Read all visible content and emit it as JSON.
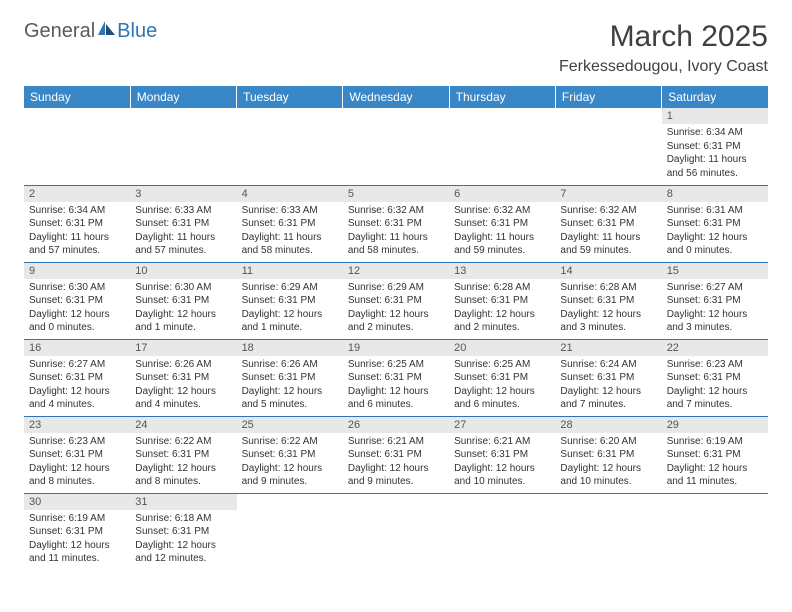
{
  "logo": {
    "text1": "General",
    "text2": "Blue"
  },
  "title": "March 2025",
  "location": "Ferkessedougou, Ivory Coast",
  "daynames": [
    "Sunday",
    "Monday",
    "Tuesday",
    "Wednesday",
    "Thursday",
    "Friday",
    "Saturday"
  ],
  "colors": {
    "header_bg": "#3a87c8",
    "header_text": "#ffffff",
    "border": "#2e75b6",
    "daynum_bg": "#e8e8e8",
    "logo_gray": "#5a5a5a",
    "logo_blue": "#2e75b6"
  },
  "weeks": [
    [
      null,
      null,
      null,
      null,
      null,
      null,
      {
        "n": "1",
        "sr": "Sunrise: 6:34 AM",
        "ss": "Sunset: 6:31 PM",
        "dl": "Daylight: 11 hours and 56 minutes."
      }
    ],
    [
      {
        "n": "2",
        "sr": "Sunrise: 6:34 AM",
        "ss": "Sunset: 6:31 PM",
        "dl": "Daylight: 11 hours and 57 minutes."
      },
      {
        "n": "3",
        "sr": "Sunrise: 6:33 AM",
        "ss": "Sunset: 6:31 PM",
        "dl": "Daylight: 11 hours and 57 minutes."
      },
      {
        "n": "4",
        "sr": "Sunrise: 6:33 AM",
        "ss": "Sunset: 6:31 PM",
        "dl": "Daylight: 11 hours and 58 minutes."
      },
      {
        "n": "5",
        "sr": "Sunrise: 6:32 AM",
        "ss": "Sunset: 6:31 PM",
        "dl": "Daylight: 11 hours and 58 minutes."
      },
      {
        "n": "6",
        "sr": "Sunrise: 6:32 AM",
        "ss": "Sunset: 6:31 PM",
        "dl": "Daylight: 11 hours and 59 minutes."
      },
      {
        "n": "7",
        "sr": "Sunrise: 6:32 AM",
        "ss": "Sunset: 6:31 PM",
        "dl": "Daylight: 11 hours and 59 minutes."
      },
      {
        "n": "8",
        "sr": "Sunrise: 6:31 AM",
        "ss": "Sunset: 6:31 PM",
        "dl": "Daylight: 12 hours and 0 minutes."
      }
    ],
    [
      {
        "n": "9",
        "sr": "Sunrise: 6:30 AM",
        "ss": "Sunset: 6:31 PM",
        "dl": "Daylight: 12 hours and 0 minutes."
      },
      {
        "n": "10",
        "sr": "Sunrise: 6:30 AM",
        "ss": "Sunset: 6:31 PM",
        "dl": "Daylight: 12 hours and 1 minute."
      },
      {
        "n": "11",
        "sr": "Sunrise: 6:29 AM",
        "ss": "Sunset: 6:31 PM",
        "dl": "Daylight: 12 hours and 1 minute."
      },
      {
        "n": "12",
        "sr": "Sunrise: 6:29 AM",
        "ss": "Sunset: 6:31 PM",
        "dl": "Daylight: 12 hours and 2 minutes."
      },
      {
        "n": "13",
        "sr": "Sunrise: 6:28 AM",
        "ss": "Sunset: 6:31 PM",
        "dl": "Daylight: 12 hours and 2 minutes."
      },
      {
        "n": "14",
        "sr": "Sunrise: 6:28 AM",
        "ss": "Sunset: 6:31 PM",
        "dl": "Daylight: 12 hours and 3 minutes."
      },
      {
        "n": "15",
        "sr": "Sunrise: 6:27 AM",
        "ss": "Sunset: 6:31 PM",
        "dl": "Daylight: 12 hours and 3 minutes."
      }
    ],
    [
      {
        "n": "16",
        "sr": "Sunrise: 6:27 AM",
        "ss": "Sunset: 6:31 PM",
        "dl": "Daylight: 12 hours and 4 minutes."
      },
      {
        "n": "17",
        "sr": "Sunrise: 6:26 AM",
        "ss": "Sunset: 6:31 PM",
        "dl": "Daylight: 12 hours and 4 minutes."
      },
      {
        "n": "18",
        "sr": "Sunrise: 6:26 AM",
        "ss": "Sunset: 6:31 PM",
        "dl": "Daylight: 12 hours and 5 minutes."
      },
      {
        "n": "19",
        "sr": "Sunrise: 6:25 AM",
        "ss": "Sunset: 6:31 PM",
        "dl": "Daylight: 12 hours and 6 minutes."
      },
      {
        "n": "20",
        "sr": "Sunrise: 6:25 AM",
        "ss": "Sunset: 6:31 PM",
        "dl": "Daylight: 12 hours and 6 minutes."
      },
      {
        "n": "21",
        "sr": "Sunrise: 6:24 AM",
        "ss": "Sunset: 6:31 PM",
        "dl": "Daylight: 12 hours and 7 minutes."
      },
      {
        "n": "22",
        "sr": "Sunrise: 6:23 AM",
        "ss": "Sunset: 6:31 PM",
        "dl": "Daylight: 12 hours and 7 minutes."
      }
    ],
    [
      {
        "n": "23",
        "sr": "Sunrise: 6:23 AM",
        "ss": "Sunset: 6:31 PM",
        "dl": "Daylight: 12 hours and 8 minutes."
      },
      {
        "n": "24",
        "sr": "Sunrise: 6:22 AM",
        "ss": "Sunset: 6:31 PM",
        "dl": "Daylight: 12 hours and 8 minutes."
      },
      {
        "n": "25",
        "sr": "Sunrise: 6:22 AM",
        "ss": "Sunset: 6:31 PM",
        "dl": "Daylight: 12 hours and 9 minutes."
      },
      {
        "n": "26",
        "sr": "Sunrise: 6:21 AM",
        "ss": "Sunset: 6:31 PM",
        "dl": "Daylight: 12 hours and 9 minutes."
      },
      {
        "n": "27",
        "sr": "Sunrise: 6:21 AM",
        "ss": "Sunset: 6:31 PM",
        "dl": "Daylight: 12 hours and 10 minutes."
      },
      {
        "n": "28",
        "sr": "Sunrise: 6:20 AM",
        "ss": "Sunset: 6:31 PM",
        "dl": "Daylight: 12 hours and 10 minutes."
      },
      {
        "n": "29",
        "sr": "Sunrise: 6:19 AM",
        "ss": "Sunset: 6:31 PM",
        "dl": "Daylight: 12 hours and 11 minutes."
      }
    ],
    [
      {
        "n": "30",
        "sr": "Sunrise: 6:19 AM",
        "ss": "Sunset: 6:31 PM",
        "dl": "Daylight: 12 hours and 11 minutes."
      },
      {
        "n": "31",
        "sr": "Sunrise: 6:18 AM",
        "ss": "Sunset: 6:31 PM",
        "dl": "Daylight: 12 hours and 12 minutes."
      },
      null,
      null,
      null,
      null,
      null
    ]
  ]
}
